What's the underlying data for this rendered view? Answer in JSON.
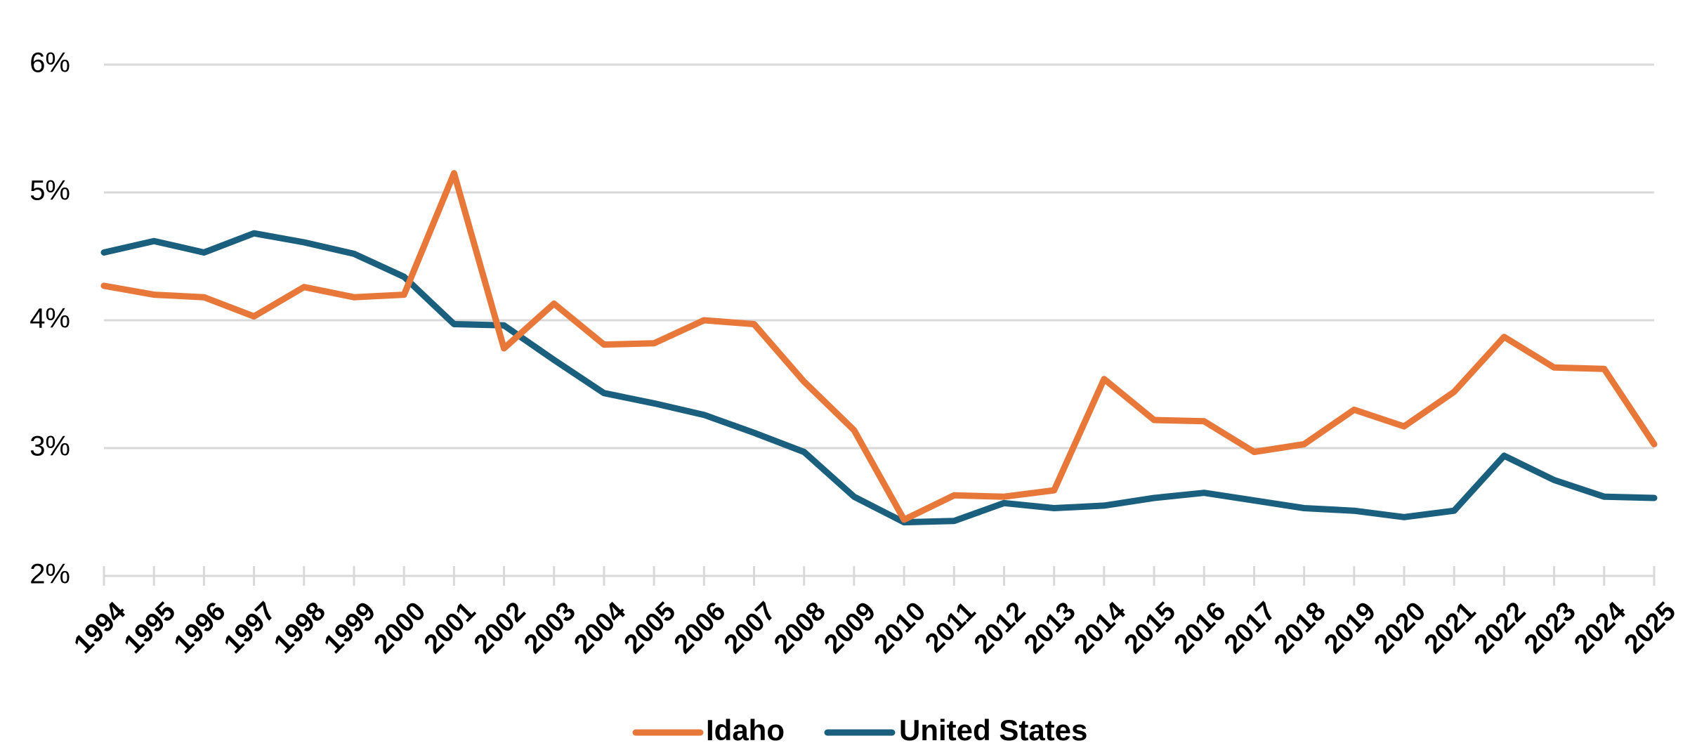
{
  "chart_data": {
    "type": "line",
    "title": "",
    "xlabel": "",
    "ylabel": "",
    "x": [
      "1994",
      "1995",
      "1996",
      "1997",
      "1998",
      "1999",
      "2000",
      "2001",
      "2002",
      "2003",
      "2004",
      "2005",
      "2006",
      "2007",
      "2008",
      "2009",
      "2010",
      "2011",
      "2012",
      "2013",
      "2014",
      "2015",
      "2016",
      "2017",
      "2018",
      "2019",
      "2020",
      "2021",
      "2022",
      "2023",
      "2024",
      "2025"
    ],
    "ylim": [
      2,
      6
    ],
    "yticks": [
      2,
      3,
      4,
      5,
      6
    ],
    "ytick_labels": [
      "2%",
      "3%",
      "4%",
      "5%",
      "6%"
    ],
    "grid": true,
    "legend_position": "bottom",
    "series": [
      {
        "name": "Idaho",
        "color": "#e8773a",
        "values": [
          4.27,
          4.2,
          4.18,
          4.03,
          4.26,
          4.18,
          4.2,
          5.15,
          3.78,
          4.13,
          3.81,
          3.82,
          4.0,
          3.97,
          3.52,
          3.14,
          2.44,
          2.63,
          2.62,
          2.67,
          3.54,
          3.22,
          3.21,
          2.97,
          3.03,
          3.3,
          3.17,
          3.44,
          3.87,
          3.63,
          3.62,
          3.03
        ]
      },
      {
        "name": "United States",
        "color": "#1a5f7e",
        "values": [
          4.53,
          4.62,
          4.53,
          4.68,
          4.61,
          4.52,
          4.34,
          3.97,
          3.96,
          3.69,
          3.43,
          3.35,
          3.26,
          3.12,
          2.97,
          2.62,
          2.42,
          2.43,
          2.57,
          2.53,
          2.55,
          2.61,
          2.65,
          2.59,
          2.53,
          2.51,
          2.46,
          2.51,
          2.94,
          2.75,
          2.62,
          2.61
        ]
      }
    ]
  }
}
